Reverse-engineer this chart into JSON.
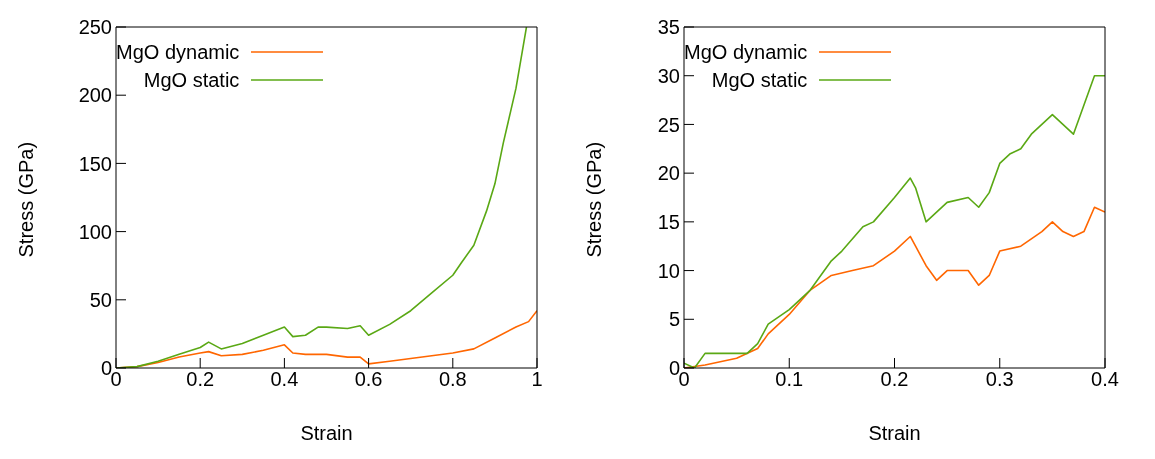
{
  "chart_data": [
    {
      "type": "line",
      "xlabel": "Strain",
      "ylabel": "Stress (GPa)",
      "xlim": [
        0,
        1
      ],
      "xticks": [
        0,
        0.2,
        0.4,
        0.6,
        0.8,
        1
      ],
      "ylim": [
        0,
        250
      ],
      "yticks": [
        0,
        50,
        100,
        150,
        200,
        250
      ],
      "legend": "top left",
      "marker": "none",
      "line_style": "solid",
      "series": [
        {
          "name": "MgO dynamic",
          "color": "#ff6600",
          "x": [
            0,
            0.05,
            0.1,
            0.15,
            0.2,
            0.22,
            0.25,
            0.3,
            0.35,
            0.4,
            0.42,
            0.45,
            0.5,
            0.55,
            0.58,
            0.6,
            0.65,
            0.7,
            0.75,
            0.8,
            0.85,
            0.9,
            0.95,
            0.98,
            1
          ],
          "values": [
            0,
            1,
            4,
            8,
            11,
            12,
            9,
            10,
            13,
            17,
            11,
            10,
            10,
            8,
            8,
            3,
            5,
            7,
            9,
            11,
            14,
            22,
            30,
            34,
            42
          ]
        },
        {
          "name": "MgO static",
          "color": "#5aa814",
          "x": [
            0,
            0.05,
            0.1,
            0.15,
            0.2,
            0.22,
            0.25,
            0.3,
            0.35,
            0.4,
            0.42,
            0.45,
            0.48,
            0.5,
            0.55,
            0.58,
            0.6,
            0.65,
            0.7,
            0.75,
            0.8,
            0.82,
            0.85,
            0.88,
            0.9,
            0.92,
            0.95,
            0.975
          ],
          "values": [
            0,
            1,
            5,
            10,
            15,
            19,
            14,
            18,
            24,
            30,
            23,
            24,
            30,
            30,
            29,
            31,
            24,
            32,
            42,
            55,
            68,
            77,
            90,
            115,
            135,
            165,
            205,
            250
          ]
        }
      ]
    },
    {
      "type": "line",
      "xlabel": "Strain",
      "ylabel": "Stress (GPa)",
      "xlim": [
        0,
        0.4
      ],
      "xticks": [
        0,
        0.1,
        0.2,
        0.3,
        0.4
      ],
      "ylim": [
        0,
        35
      ],
      "yticks": [
        0,
        5,
        10,
        15,
        20,
        25,
        30,
        35
      ],
      "legend": "top left",
      "marker": "none",
      "line_style": "solid",
      "series": [
        {
          "name": "MgO dynamic",
          "color": "#ff6600",
          "x": [
            0,
            0.02,
            0.05,
            0.07,
            0.08,
            0.1,
            0.12,
            0.14,
            0.16,
            0.18,
            0.2,
            0.215,
            0.22,
            0.23,
            0.24,
            0.25,
            0.27,
            0.28,
            0.29,
            0.3,
            0.32,
            0.34,
            0.35,
            0.36,
            0.37,
            0.38,
            0.39,
            0.4
          ],
          "values": [
            0,
            0.3,
            1,
            2,
            3.5,
            5.5,
            8,
            9.5,
            10,
            10.5,
            12,
            13.5,
            12.5,
            10.5,
            9,
            10,
            10,
            8.5,
            9.5,
            12,
            12.5,
            14,
            15,
            14,
            13.5,
            14,
            16.5,
            16
          ]
        },
        {
          "name": "MgO static",
          "color": "#5aa814",
          "x": [
            0,
            0.01,
            0.02,
            0.04,
            0.06,
            0.07,
            0.08,
            0.1,
            0.12,
            0.14,
            0.15,
            0.17,
            0.18,
            0.2,
            0.215,
            0.22,
            0.23,
            0.24,
            0.25,
            0.27,
            0.28,
            0.29,
            0.3,
            0.31,
            0.32,
            0.33,
            0.35,
            0.36,
            0.37,
            0.38,
            0.39,
            0.4
          ],
          "values": [
            0.5,
            0,
            1.5,
            1.5,
            1.5,
            2.5,
            4.5,
            6,
            8,
            11,
            12,
            14.5,
            15,
            17.5,
            19.5,
            18.5,
            15,
            16,
            17,
            17.5,
            16.5,
            18,
            21,
            22,
            22.5,
            24,
            26,
            25,
            24,
            27,
            30,
            30
          ]
        }
      ]
    }
  ]
}
